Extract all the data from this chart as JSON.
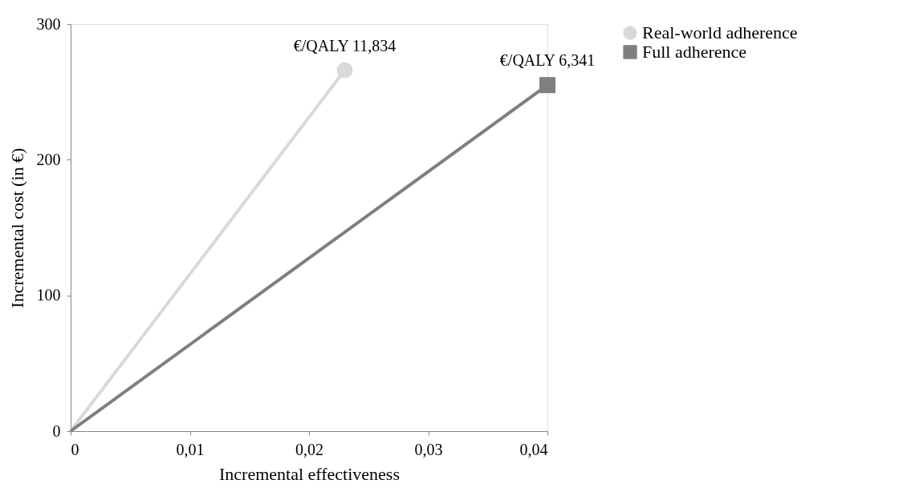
{
  "chart_data": {
    "type": "line",
    "xlabel": "Incremental effectiveness",
    "ylabel": "Incremental cost (in €)",
    "series": [
      {
        "name": "Real-world adherence",
        "color": "#d9d9d9",
        "marker": "circle",
        "x": [
          0,
          0.023
        ],
        "values": [
          0,
          266
        ]
      },
      {
        "name": "Full adherence",
        "color": "#7f7f7f",
        "marker": "square",
        "x": [
          0,
          0.04
        ],
        "values": [
          0,
          255
        ]
      }
    ],
    "xlim": [
      0,
      0.04
    ],
    "xticks": [
      0,
      {
        "value": 0.01,
        "label": "0,01"
      },
      {
        "value": 0.02,
        "label": "0,02"
      },
      {
        "value": 0.03,
        "label": "0,03"
      },
      {
        "value": 0.04,
        "label": "0,04"
      }
    ],
    "ylim": [
      0,
      300
    ],
    "yticks": [
      0,
      100,
      200,
      300
    ],
    "annotations": [
      {
        "text": "€/QALY 11,834",
        "x": 0.023,
        "y": 266
      },
      {
        "text": "€/QALY 6,341",
        "x": 0.04,
        "y": 255
      }
    ],
    "grid": false,
    "legend": "right",
    "line_style": "solid"
  }
}
